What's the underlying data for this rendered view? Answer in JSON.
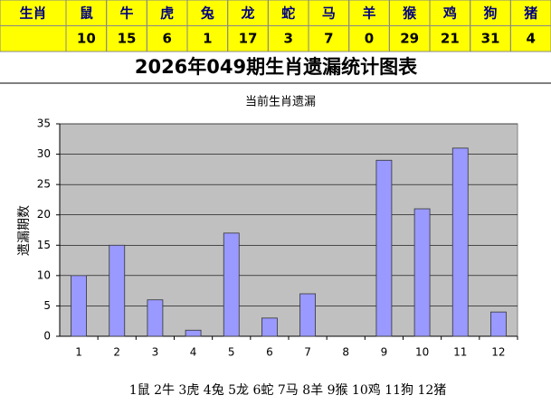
{
  "table": {
    "header": [
      "生肖",
      "鼠",
      "牛",
      "虎",
      "兔",
      "龙",
      "蛇",
      "马",
      "羊",
      "猴",
      "鸡",
      "狗",
      "猪"
    ],
    "row": [
      "10",
      "15",
      "6",
      "1",
      "17",
      "3",
      "7",
      "0",
      "29",
      "21",
      "31",
      "4"
    ]
  },
  "chart_data": {
    "type": "bar",
    "page_title": "2026年049期生肖遗漏统计图表",
    "title": "当前生肖遗漏",
    "y_label": "遗漏期数",
    "categories": [
      "1",
      "2",
      "3",
      "4",
      "5",
      "6",
      "7",
      "8",
      "9",
      "10",
      "11",
      "12"
    ],
    "values": [
      10,
      15,
      6,
      1,
      17,
      3,
      7,
      0,
      29,
      21,
      31,
      4
    ],
    "color": "#9999ff",
    "ylim": [
      0,
      35
    ],
    "yticks": [
      0,
      5,
      10,
      15,
      20,
      25,
      30,
      35
    ],
    "grid": true,
    "note": "1鼠 2牛 3虎 4兔 5龙 6蛇 7马 8羊 9猴 10鸡 11狗 12猪"
  }
}
